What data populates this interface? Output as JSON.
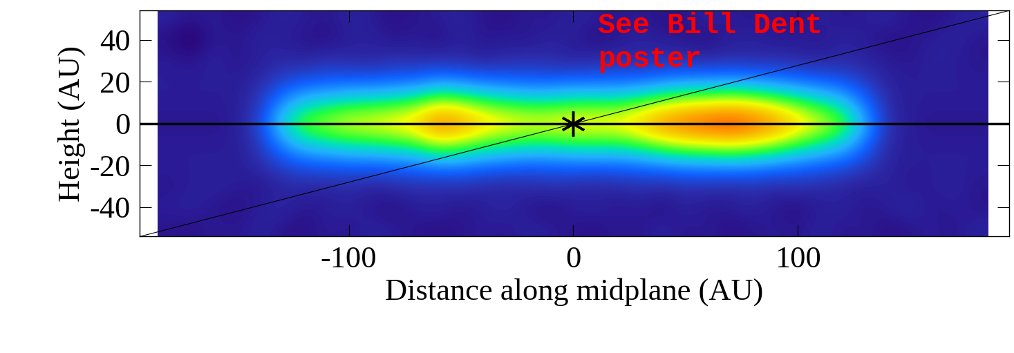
{
  "chart_data": {
    "type": "heatmap",
    "xlabel": "Distance along midplane (AU)",
    "ylabel": "Height (AU)",
    "annotations": [
      "See Bill Dent\nposter"
    ],
    "xlim": [
      -193,
      194
    ],
    "ylim": [
      -54,
      54
    ],
    "xticks": [
      -100,
      0,
      100
    ],
    "yticks": [
      -40,
      -20,
      0,
      20,
      40
    ],
    "value_range": [
      0,
      1
    ],
    "x": [
      -180,
      -170,
      -160,
      -150,
      -140,
      -130,
      -120,
      -110,
      -100,
      -90,
      -80,
      -70,
      -60,
      -50,
      -40,
      -30,
      -20,
      -10,
      0,
      10,
      20,
      30,
      40,
      50,
      60,
      70,
      80,
      90,
      100,
      110,
      120,
      130,
      140,
      150,
      160,
      170,
      180
    ],
    "y": [
      -50,
      -40,
      -30,
      -20,
      -10,
      0,
      10,
      20,
      30,
      40,
      50
    ],
    "values": [
      [
        0.08,
        0.07,
        0.09,
        0.08,
        0.1,
        0.08,
        0.07,
        0.09,
        0.08,
        0.1,
        0.09,
        0.08,
        0.07,
        0.08,
        0.09,
        0.08,
        0.1,
        0.09,
        0.08,
        0.07,
        0.09,
        0.08,
        0.1,
        0.08,
        0.09,
        0.07,
        0.08,
        0.09,
        0.08,
        0.1,
        0.08,
        0.09,
        0.07,
        0.08,
        0.09,
        0.08,
        0.1
      ],
      [
        0.09,
        0.1,
        0.08,
        0.07,
        0.09,
        0.11,
        0.08,
        0.09,
        0.1,
        0.08,
        0.07,
        0.09,
        0.1,
        0.08,
        0.09,
        0.11,
        0.08,
        0.07,
        0.09,
        0.1,
        0.08,
        0.09,
        0.07,
        0.1,
        0.08,
        0.09,
        0.1,
        0.08,
        0.07,
        0.09,
        0.1,
        0.08,
        0.09,
        0.11,
        0.08,
        0.09,
        0.08
      ],
      [
        0.08,
        0.09,
        0.1,
        0.09,
        0.08,
        0.1,
        0.11,
        0.1,
        0.11,
        0.1,
        0.11,
        0.12,
        0.11,
        0.12,
        0.11,
        0.1,
        0.11,
        0.12,
        0.11,
        0.1,
        0.11,
        0.12,
        0.11,
        0.12,
        0.12,
        0.11,
        0.12,
        0.11,
        0.12,
        0.11,
        0.1,
        0.09,
        0.1,
        0.08,
        0.09,
        0.1,
        0.08
      ],
      [
        0.09,
        0.09,
        0.09,
        0.09,
        0.11,
        0.15,
        0.18,
        0.19,
        0.2,
        0.2,
        0.21,
        0.22,
        0.25,
        0.24,
        0.22,
        0.21,
        0.2,
        0.2,
        0.21,
        0.21,
        0.21,
        0.22,
        0.24,
        0.26,
        0.26,
        0.27,
        0.26,
        0.24,
        0.22,
        0.2,
        0.18,
        0.14,
        0.1,
        0.09,
        0.09,
        0.09,
        0.09
      ],
      [
        0.09,
        0.09,
        0.09,
        0.09,
        0.13,
        0.25,
        0.34,
        0.37,
        0.4,
        0.41,
        0.43,
        0.46,
        0.55,
        0.52,
        0.46,
        0.43,
        0.41,
        0.41,
        0.43,
        0.43,
        0.43,
        0.47,
        0.53,
        0.57,
        0.59,
        0.61,
        0.58,
        0.53,
        0.46,
        0.4,
        0.34,
        0.22,
        0.11,
        0.09,
        0.09,
        0.09,
        0.09
      ],
      [
        0.08,
        0.08,
        0.08,
        0.09,
        0.15,
        0.35,
        0.5,
        0.55,
        0.6,
        0.62,
        0.65,
        0.7,
        0.85,
        0.8,
        0.7,
        0.65,
        0.62,
        0.62,
        0.65,
        0.65,
        0.65,
        0.72,
        0.82,
        0.88,
        0.92,
        0.95,
        0.9,
        0.82,
        0.7,
        0.6,
        0.5,
        0.3,
        0.12,
        0.09,
        0.08,
        0.08,
        0.08
      ],
      [
        0.09,
        0.09,
        0.09,
        0.09,
        0.13,
        0.25,
        0.34,
        0.37,
        0.4,
        0.41,
        0.43,
        0.46,
        0.55,
        0.52,
        0.46,
        0.43,
        0.41,
        0.41,
        0.43,
        0.43,
        0.43,
        0.47,
        0.53,
        0.57,
        0.59,
        0.61,
        0.58,
        0.53,
        0.46,
        0.4,
        0.34,
        0.22,
        0.11,
        0.09,
        0.09,
        0.09,
        0.09
      ],
      [
        0.09,
        0.09,
        0.09,
        0.09,
        0.11,
        0.15,
        0.18,
        0.19,
        0.2,
        0.2,
        0.21,
        0.22,
        0.25,
        0.24,
        0.22,
        0.21,
        0.2,
        0.2,
        0.21,
        0.21,
        0.21,
        0.22,
        0.24,
        0.26,
        0.26,
        0.27,
        0.26,
        0.24,
        0.22,
        0.2,
        0.18,
        0.14,
        0.1,
        0.09,
        0.09,
        0.09,
        0.09
      ],
      [
        0.09,
        0.08,
        0.1,
        0.08,
        0.09,
        0.11,
        0.1,
        0.12,
        0.11,
        0.1,
        0.12,
        0.11,
        0.12,
        0.11,
        0.1,
        0.11,
        0.12,
        0.11,
        0.1,
        0.11,
        0.12,
        0.11,
        0.12,
        0.12,
        0.11,
        0.12,
        0.11,
        0.12,
        0.11,
        0.1,
        0.11,
        0.1,
        0.09,
        0.08,
        0.1,
        0.09,
        0.08
      ],
      [
        0.07,
        0.03,
        0.09,
        0.08,
        0.1,
        0.09,
        0.08,
        0.07,
        0.09,
        0.1,
        0.08,
        0.09,
        0.07,
        0.1,
        0.08,
        0.09,
        0.08,
        0.1,
        0.09,
        0.07,
        0.08,
        0.1,
        0.09,
        0.08,
        0.07,
        0.09,
        0.1,
        0.08,
        0.09,
        0.08,
        0.1,
        0.09,
        0.07,
        0.08,
        0.09,
        0.1,
        0.08
      ],
      [
        0.1,
        0.08,
        0.09,
        0.07,
        0.08,
        0.1,
        0.09,
        0.08,
        0.1,
        0.09,
        0.07,
        0.08,
        0.09,
        0.1,
        0.08,
        0.07,
        0.09,
        0.08,
        0.1,
        0.09,
        0.08,
        0.09,
        0.07,
        0.08,
        0.1,
        0.09,
        0.08,
        0.09,
        0.07,
        0.1,
        0.08,
        0.09,
        0.1,
        0.08,
        0.07,
        0.09,
        0.1
      ]
    ],
    "lines": [
      {
        "x": [
          -193,
          194
        ],
        "y": [
          0,
          0
        ],
        "color": "#000000",
        "line_style": "solid"
      },
      {
        "x": [
          -193,
          194
        ],
        "y": [
          -54,
          54
        ],
        "color": "#000000",
        "line_style": "solid"
      }
    ],
    "star": {
      "x": 0,
      "y": 0,
      "marker": "asterisk",
      "color": "#000000"
    }
  }
}
